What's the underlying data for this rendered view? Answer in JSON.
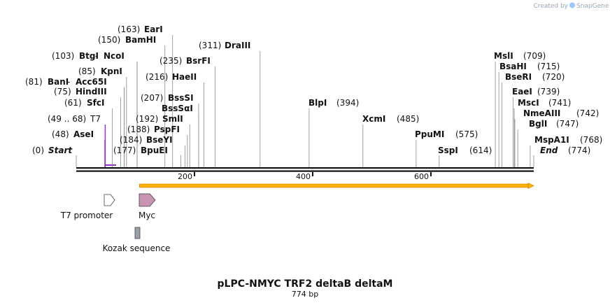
{
  "credit": {
    "prefix": "Created by",
    "brand": "SnapGene"
  },
  "title": "pLPC-NMYC TRF2 deltaB deltaM",
  "subtitle": "774 bp",
  "sequence_length": 774,
  "sites": [
    {
      "name": "Start",
      "pos_label": "(0)",
      "pos": 0,
      "italic": true
    },
    {
      "name": "AseI",
      "pos_label": "(48)",
      "pos": 48
    },
    {
      "name": "T7",
      "pos_label": "(49 .. 68)",
      "pos": 49,
      "color": "#9933cc"
    },
    {
      "name": "SfcI",
      "pos_label": "(61)",
      "pos": 61
    },
    {
      "name": "HindIII",
      "pos_label": "(75)",
      "pos": 75
    },
    {
      "name": "BanI",
      "pos_label": "(81)",
      "pos": 81
    },
    {
      "name": "Acc65I",
      "pos_label": "",
      "pos": 81,
      "prefix": "-"
    },
    {
      "name": "KpnI",
      "pos_label": "(85)",
      "pos": 85
    },
    {
      "name": "BtgI",
      "pos_label": "(103)",
      "pos": 103
    },
    {
      "name": "NcoI",
      "pos_label": "",
      "pos": 103,
      "prefix": "-"
    },
    {
      "name": "BamHI",
      "pos_label": "(150)",
      "pos": 150
    },
    {
      "name": "EarI",
      "pos_label": "(163)",
      "pos": 163
    },
    {
      "name": "BpuEI",
      "pos_label": "(177)",
      "pos": 177
    },
    {
      "name": "BseYI",
      "pos_label": "(184)",
      "pos": 184
    },
    {
      "name": "PspFI",
      "pos_label": "(188)",
      "pos": 188
    },
    {
      "name": "SmlI",
      "pos_label": "(192)",
      "pos": 192
    },
    {
      "name": "BssSαI",
      "pos_label": "",
      "pos": 207
    },
    {
      "name": "BssSI",
      "pos_label": "(207)",
      "pos": 207
    },
    {
      "name": "HaeII",
      "pos_label": "(216)",
      "pos": 216
    },
    {
      "name": "BsrFI",
      "pos_label": "(235)",
      "pos": 235
    },
    {
      "name": "DraIII",
      "pos_label": "(311)",
      "pos": 311
    },
    {
      "name": "BlpI",
      "pos_label": "(394)",
      "pos": 394
    },
    {
      "name": "XcmI",
      "pos_label": "(485)",
      "pos": 485
    },
    {
      "name": "PpuMI",
      "pos_label": "(575)",
      "pos": 575
    },
    {
      "name": "SspI",
      "pos_label": "(614)",
      "pos": 614
    },
    {
      "name": "MslI",
      "pos_label": "(709)",
      "pos": 709
    },
    {
      "name": "BsaHI",
      "pos_label": "(715)",
      "pos": 715
    },
    {
      "name": "BseRI",
      "pos_label": "(720)",
      "pos": 720
    },
    {
      "name": "EaeI",
      "pos_label": "(739)",
      "pos": 739
    },
    {
      "name": "MscI",
      "pos_label": "(741)",
      "pos": 741
    },
    {
      "name": "NmeAIII",
      "pos_label": "(742)",
      "pos": 742
    },
    {
      "name": "BglI",
      "pos_label": "(747)",
      "pos": 747
    },
    {
      "name": "MspA1I",
      "pos_label": "(768)",
      "pos": 768
    },
    {
      "name": "End",
      "pos_label": "(774)",
      "pos": 774,
      "italic": true
    }
  ],
  "ruler_ticks": [
    {
      "value": 200,
      "label": "200"
    },
    {
      "value": 400,
      "label": "400"
    },
    {
      "value": 600,
      "label": "600"
    }
  ],
  "features": [
    {
      "name": "T7 promoter",
      "start": 49,
      "end": 68,
      "kind": "promoter",
      "color": "#ffffff"
    },
    {
      "name": "Myc",
      "start": 107,
      "end": 136,
      "kind": "cds",
      "color": "#c894b4"
    },
    {
      "name": "Kozak sequence",
      "start": 101,
      "end": 110,
      "kind": "misc",
      "color": "#9aa0aa"
    }
  ],
  "orf_arrow": {
    "start": 107,
    "end": 774,
    "color": "#ffb000"
  },
  "colors": {
    "backbone": "#111111",
    "line": "#888888",
    "t7_mark": "#9933cc"
  }
}
